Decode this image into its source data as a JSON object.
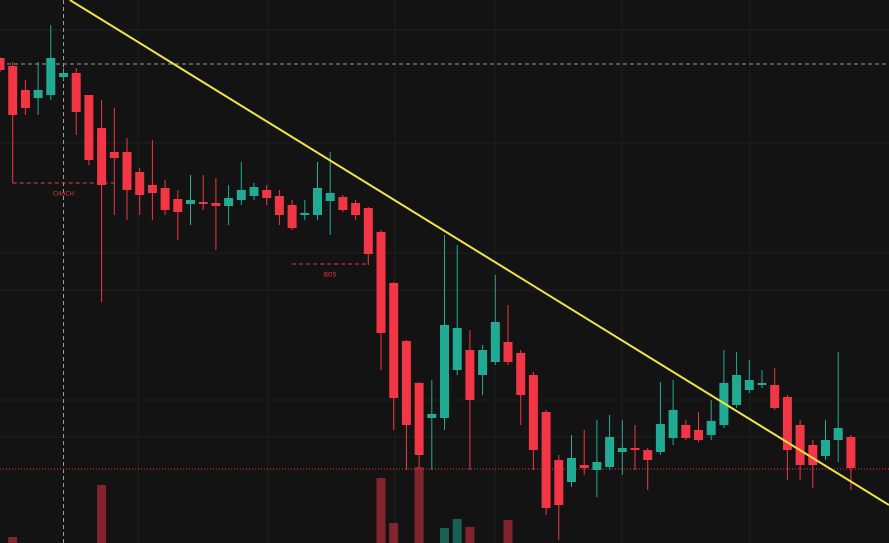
{
  "chart_data": {
    "type": "candlestick",
    "ylim": [
      0,
      543
    ],
    "up_color": "#22ab94",
    "down_color": "#f23645",
    "ohlc": [
      [
        485,
        486,
        471,
        473
      ],
      [
        477,
        481,
        360,
        428
      ],
      [
        453,
        463,
        428,
        435
      ],
      [
        445,
        481,
        428,
        453
      ],
      [
        448,
        518,
        443,
        485
      ],
      [
        466,
        475,
        463,
        470
      ],
      [
        470,
        475,
        408,
        431
      ],
      [
        448,
        448,
        378,
        383
      ],
      [
        415,
        443,
        241,
        358
      ],
      [
        391,
        435,
        328,
        385
      ],
      [
        391,
        405,
        323,
        353
      ],
      [
        371,
        375,
        328,
        348
      ],
      [
        358,
        403,
        323,
        350
      ],
      [
        355,
        363,
        328,
        333
      ],
      [
        344,
        353,
        303,
        331
      ],
      [
        339,
        368,
        318,
        343
      ],
      [
        341,
        368,
        333,
        339
      ],
      [
        340,
        365,
        293,
        337
      ],
      [
        337,
        358,
        318,
        345
      ],
      [
        343,
        381,
        338,
        353
      ],
      [
        347,
        360,
        343,
        356
      ],
      [
        353,
        358,
        338,
        345
      ],
      [
        347,
        353,
        318,
        328
      ],
      [
        338,
        343,
        313,
        315
      ],
      [
        328,
        343,
        323,
        330
      ],
      [
        328,
        381,
        323,
        355
      ],
      [
        342,
        391,
        308,
        350
      ],
      [
        346,
        348,
        331,
        333
      ],
      [
        340,
        343,
        323,
        328
      ],
      [
        335,
        336,
        278,
        289
      ],
      [
        311,
        313,
        173,
        210
      ],
      [
        260,
        261,
        113,
        145
      ],
      [
        202,
        203,
        73,
        118
      ],
      [
        160,
        161,
        75,
        88
      ],
      [
        125,
        163,
        73,
        129
      ],
      [
        125,
        308,
        113,
        218
      ],
      [
        173,
        298,
        168,
        215
      ],
      [
        193,
        213,
        73,
        143
      ],
      [
        168,
        198,
        148,
        193
      ],
      [
        181,
        268,
        178,
        221
      ],
      [
        201,
        238,
        178,
        181
      ],
      [
        190,
        193,
        118,
        148
      ],
      [
        168,
        171,
        73,
        93
      ],
      [
        131,
        133,
        28,
        35
      ],
      [
        83,
        88,
        3,
        38
      ],
      [
        61,
        108,
        56,
        85
      ],
      [
        78,
        113,
        68,
        75
      ],
      [
        73,
        123,
        46,
        81
      ],
      [
        76,
        128,
        73,
        106
      ],
      [
        91,
        123,
        68,
        95
      ],
      [
        95,
        118,
        73,
        93
      ],
      [
        93,
        95,
        53,
        83
      ],
      [
        91,
        161,
        88,
        119
      ],
      [
        105,
        163,
        98,
        133
      ],
      [
        118,
        123,
        103,
        105
      ],
      [
        113,
        131,
        101,
        103
      ],
      [
        108,
        143,
        103,
        122
      ],
      [
        118,
        193,
        115,
        160
      ],
      [
        138,
        191,
        135,
        168
      ],
      [
        153,
        183,
        150,
        163
      ],
      [
        158,
        173,
        155,
        160
      ],
      [
        158,
        175,
        133,
        135
      ],
      [
        146,
        148,
        63,
        93
      ],
      [
        118,
        123,
        63,
        78
      ],
      [
        98,
        103,
        55,
        78
      ],
      [
        87,
        123,
        83,
        103
      ],
      [
        103,
        191,
        81,
        115
      ],
      [
        106,
        108,
        53,
        75
      ]
    ],
    "volume": [
      null,
      6,
      null,
      null,
      null,
      null,
      null,
      null,
      58,
      null,
      null,
      null,
      null,
      null,
      null,
      null,
      null,
      null,
      null,
      null,
      null,
      null,
      null,
      null,
      null,
      null,
      null,
      null,
      null,
      null,
      65,
      20,
      null,
      76,
      null,
      15,
      24,
      16,
      null,
      null,
      23,
      null,
      null,
      null,
      null,
      null,
      null,
      null,
      null,
      null,
      null,
      null,
      null,
      null,
      null,
      null,
      null,
      null,
      null,
      null,
      null,
      null,
      null,
      null,
      null,
      null,
      null,
      null
    ],
    "trendline": {
      "x": [
        5.5,
        70
      ],
      "y": [
        543,
        38
      ],
      "color": "#f0e442"
    },
    "crosshair": {
      "x": 5,
      "y": 479
    },
    "last_price": 74,
    "choch": {
      "label": "CHoCH",
      "x": [
        1,
        9
      ],
      "value": 360
    },
    "bos": {
      "label": "BOS",
      "x": [
        23,
        29
      ],
      "value": 279
    }
  }
}
